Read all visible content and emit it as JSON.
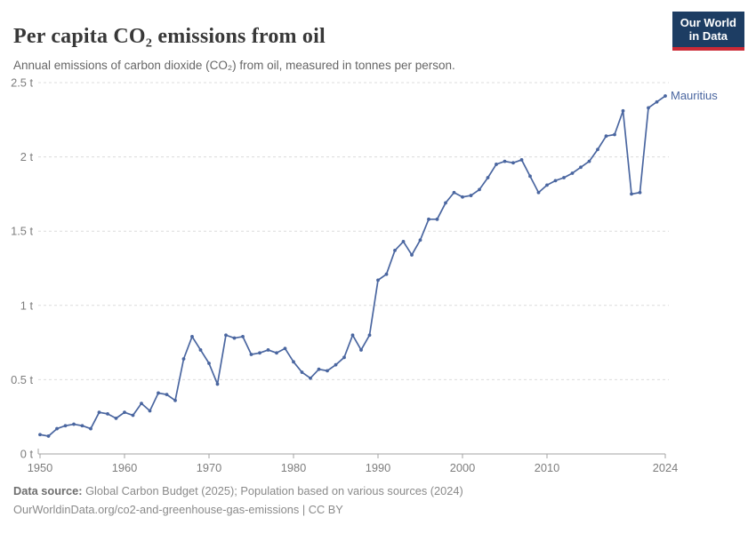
{
  "header": {
    "title": "Per capita CO₂ emissions from oil",
    "subtitle": "Annual emissions of carbon dioxide (CO₂) from oil, measured in tonnes per person.",
    "logo": {
      "line1": "Our World",
      "line2": "in Data"
    }
  },
  "chart_data": {
    "type": "line",
    "title": "Per capita CO₂ emissions from oil",
    "xlabel": "",
    "ylabel": "tonnes per person",
    "xlim": [
      1950,
      2024
    ],
    "ylim": [
      0,
      2.5
    ],
    "grid": "horizontal-dashed",
    "legend_position": "end-of-line-label",
    "x": [
      1950,
      1951,
      1952,
      1953,
      1954,
      1955,
      1956,
      1957,
      1958,
      1959,
      1960,
      1961,
      1962,
      1963,
      1964,
      1965,
      1966,
      1967,
      1968,
      1969,
      1970,
      1971,
      1972,
      1973,
      1974,
      1975,
      1976,
      1977,
      1978,
      1979,
      1980,
      1981,
      1982,
      1983,
      1984,
      1985,
      1986,
      1987,
      1988,
      1989,
      1990,
      1991,
      1992,
      1993,
      1994,
      1995,
      1996,
      1997,
      1998,
      1999,
      2000,
      2001,
      2002,
      2003,
      2004,
      2005,
      2006,
      2007,
      2008,
      2009,
      2010,
      2011,
      2012,
      2013,
      2014,
      2015,
      2016,
      2017,
      2018,
      2019,
      2020,
      2021,
      2022,
      2023,
      2024
    ],
    "series": [
      {
        "name": "Mauritius",
        "color": "#4a66a0",
        "values": [
          0.13,
          0.12,
          0.17,
          0.19,
          0.2,
          0.19,
          0.17,
          0.28,
          0.27,
          0.24,
          0.28,
          0.26,
          0.34,
          0.29,
          0.41,
          0.4,
          0.36,
          0.64,
          0.79,
          0.7,
          0.61,
          0.47,
          0.8,
          0.78,
          0.79,
          0.67,
          0.68,
          0.7,
          0.68,
          0.71,
          0.62,
          0.55,
          0.51,
          0.57,
          0.56,
          0.6,
          0.65,
          0.8,
          0.7,
          0.8,
          1.17,
          1.21,
          1.37,
          1.43,
          1.34,
          1.44,
          1.58,
          1.58,
          1.69,
          1.76,
          1.73,
          1.74,
          1.78,
          1.86,
          1.95,
          1.97,
          1.96,
          1.98,
          1.87,
          1.76,
          1.81,
          1.84,
          1.86,
          1.89,
          1.93,
          1.97,
          2.05,
          2.14,
          2.15,
          2.31,
          1.75,
          1.76,
          2.33,
          2.37,
          2.41
        ]
      }
    ],
    "y_ticks": [
      {
        "value": 0,
        "label": "0 t"
      },
      {
        "value": 0.5,
        "label": "0.5 t"
      },
      {
        "value": 1,
        "label": "1 t"
      },
      {
        "value": 1.5,
        "label": "1.5 t"
      },
      {
        "value": 2,
        "label": "2 t"
      },
      {
        "value": 2.5,
        "label": "2.5 t"
      }
    ],
    "x_ticks": [
      {
        "value": 1950,
        "label": "1950"
      },
      {
        "value": 1960,
        "label": "1960"
      },
      {
        "value": 1970,
        "label": "1970"
      },
      {
        "value": 1980,
        "label": "1980"
      },
      {
        "value": 1990,
        "label": "1990"
      },
      {
        "value": 2000,
        "label": "2000"
      },
      {
        "value": 2010,
        "label": "2010"
      },
      {
        "value": 2024,
        "label": "2024"
      }
    ]
  },
  "footer": {
    "source_label": "Data source:",
    "source_text": " Global Carbon Budget (2025); Population based on various sources (2024)",
    "citation_line": "OurWorldinData.org/co2-and-greenhouse-gas-emissions | CC BY"
  },
  "colors": {
    "series_line": "#4a66a0",
    "gridline": "#dcdcdc",
    "axis": "#a3a3a3",
    "tick_label": "#7d7d7d",
    "logo_background": "#1d3d63",
    "logo_underline": "#cc2a36"
  }
}
